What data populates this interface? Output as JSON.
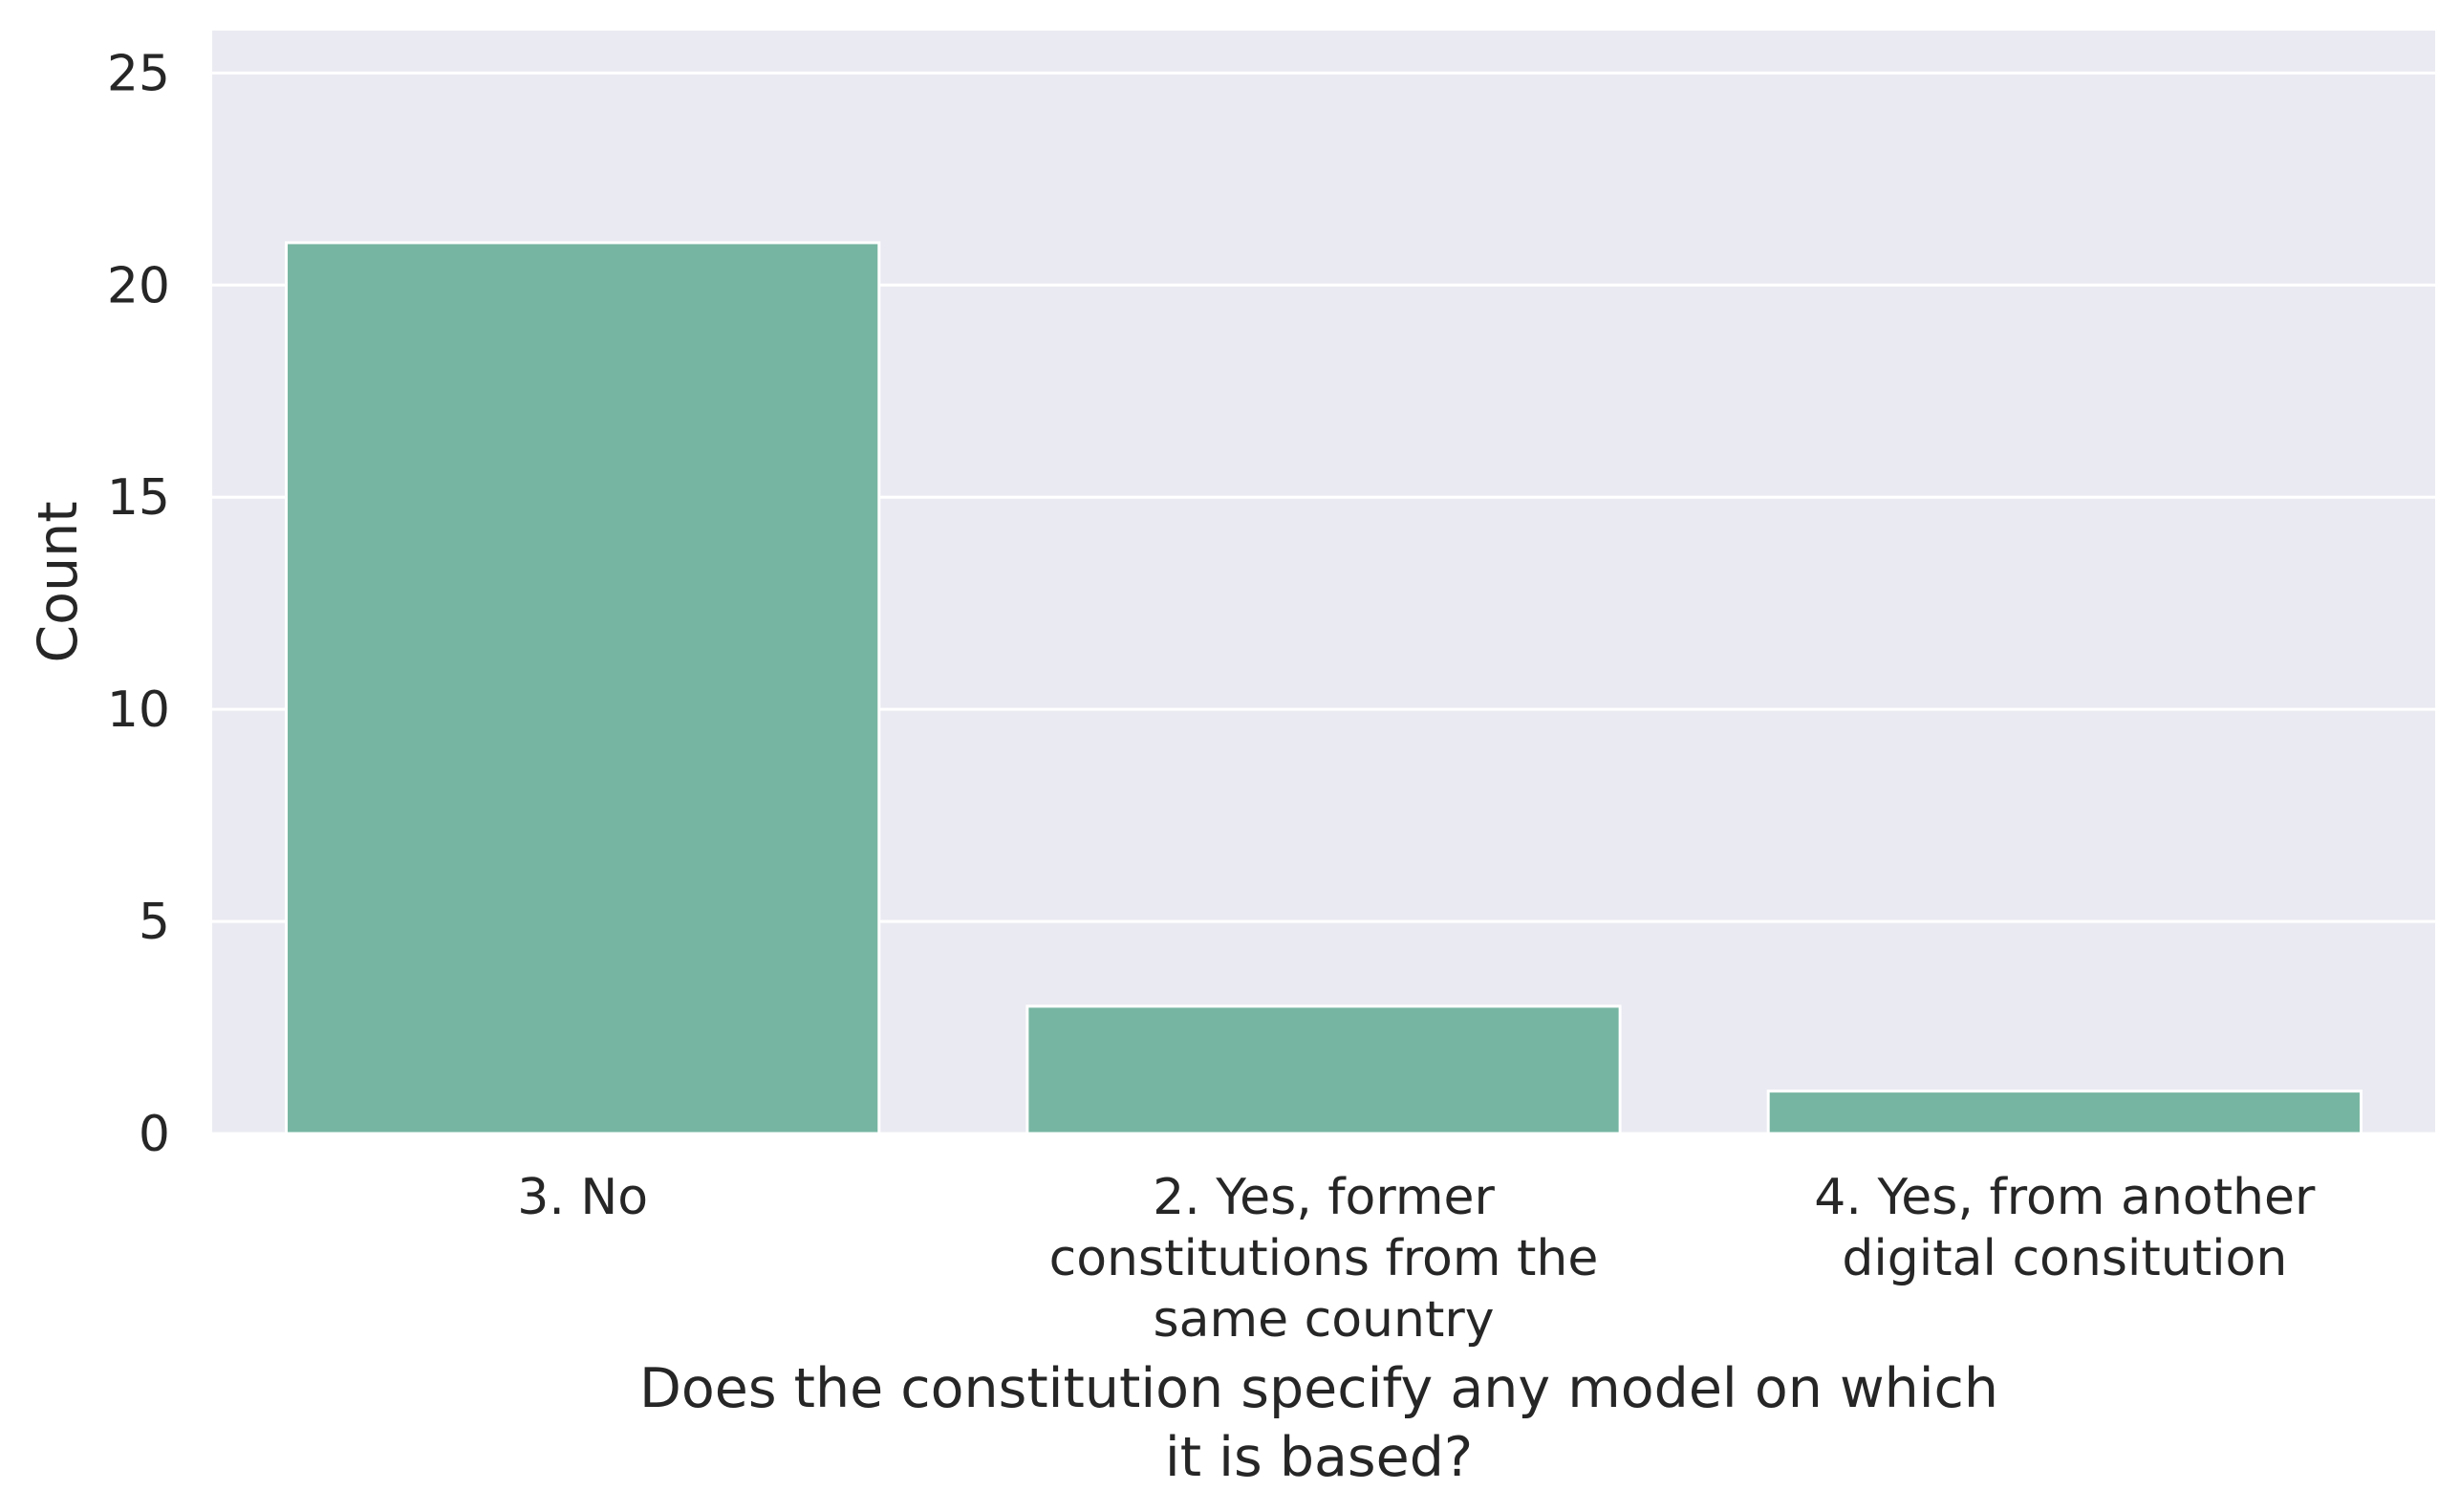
{
  "chart_data": {
    "type": "bar",
    "title": "",
    "xlabel": [
      "Does the constitution specify any model on which",
      "it is based?"
    ],
    "ylabel": "Count",
    "categories": [
      [
        "3. No"
      ],
      [
        "2. Yes, former",
        "constitutions from the",
        "same country"
      ],
      [
        "4. Yes, from another",
        "digital consitution"
      ]
    ],
    "values": [
      21,
      3,
      1
    ],
    "ylim": [
      0,
      26
    ],
    "yticks": [
      "0",
      "5",
      "10",
      "15",
      "20",
      "25"
    ],
    "grid": true,
    "legend": "none",
    "colors": {
      "bar": "#76b5a1",
      "background": "#eaeaf2",
      "grid": "#ffffff",
      "text": "#262626"
    }
  }
}
